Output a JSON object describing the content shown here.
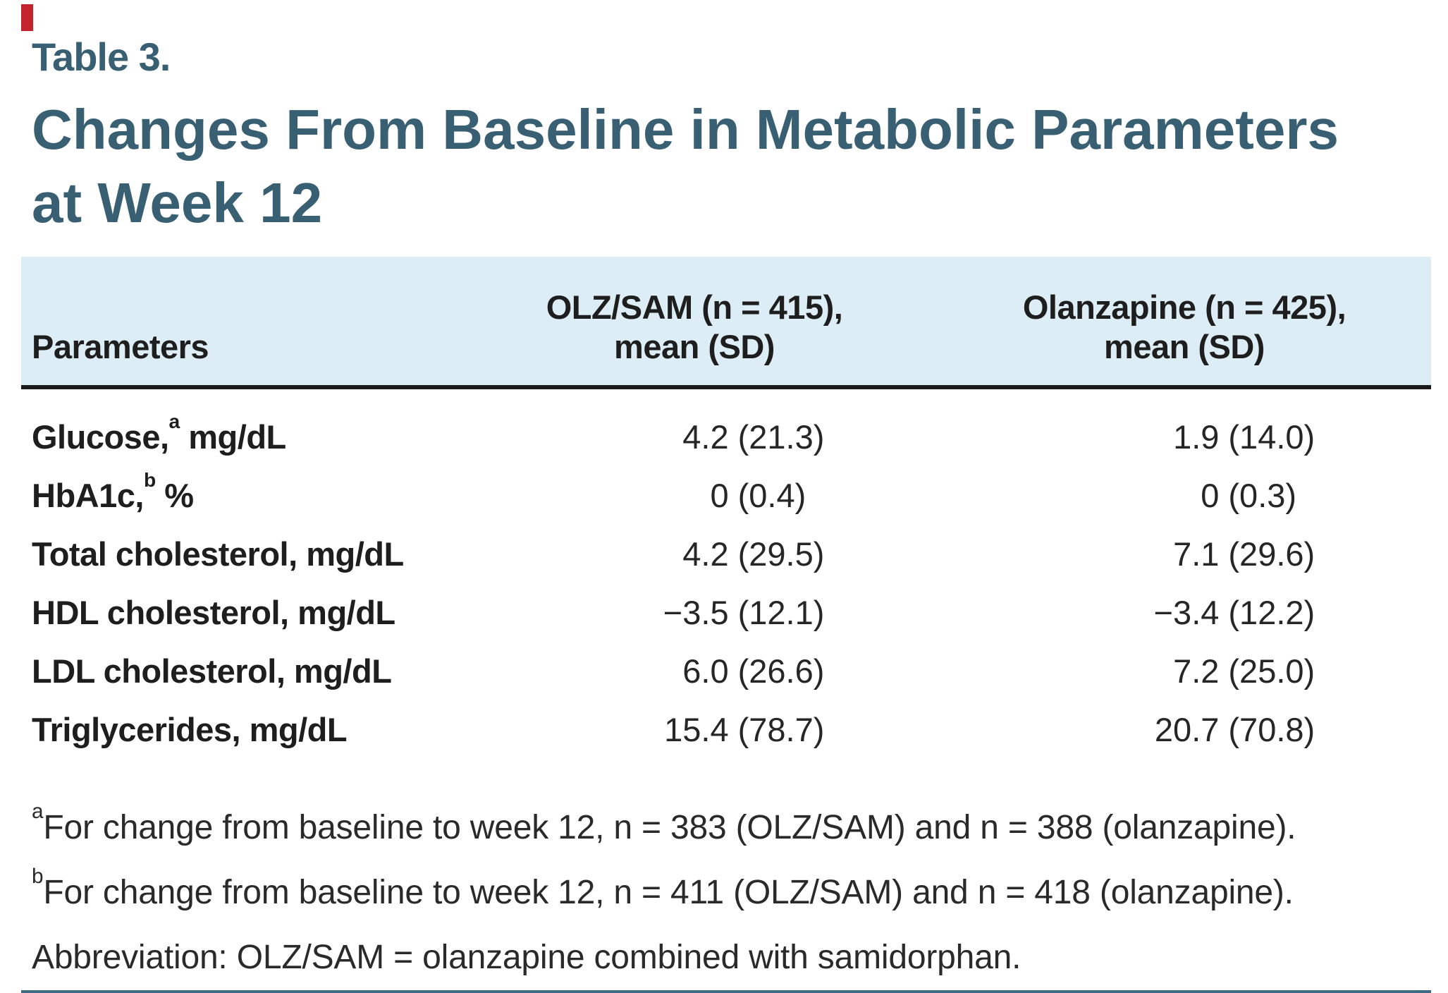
{
  "colors": {
    "title_text": "#395f73",
    "header_background": "#ddedf6",
    "header_underline": "#1a1a1a",
    "bottom_rule": "#3e6c83",
    "body_text": "#1e1e1e",
    "red_mark": "#c4232e"
  },
  "kicker": "Table 3.",
  "title": {
    "lines": [
      "Changes From Baseline in Metabolic Parameters",
      "at Week 12"
    ]
  },
  "table": {
    "columns": {
      "param": "Parameters",
      "col1": "OLZ/SAM (n = 415),\nmean (SD)",
      "col2": "Olanzapine (n = 425),\nmean (SD)"
    },
    "rows": [
      {
        "pre": "Glucose,",
        "sup": "a",
        "post": " mg/dL",
        "c1_mean": "4.2",
        "c1_sd": "(21.3)",
        "c2_mean": "1.9",
        "c2_sd": "(14.0)"
      },
      {
        "pre": "HbA1c,",
        "sup": "b",
        "post": " %",
        "c1_mean": "0",
        "c1_sd": "(0.4)",
        "c2_mean": "0",
        "c2_sd": "(0.3)"
      },
      {
        "pre": "Total cholesterol, mg/dL",
        "sup": "",
        "post": "",
        "c1_mean": "4.2",
        "c1_sd": "(29.5)",
        "c2_mean": "7.1",
        "c2_sd": "(29.6)"
      },
      {
        "pre": "HDL cholesterol, mg/dL",
        "sup": "",
        "post": "",
        "c1_mean": "−3.5",
        "c1_sd": "(12.1)",
        "c2_mean": "−3.4",
        "c2_sd": "(12.2)"
      },
      {
        "pre": "LDL cholesterol, mg/dL",
        "sup": "",
        "post": "",
        "c1_mean": "6.0",
        "c1_sd": "(26.6)",
        "c2_mean": "7.2",
        "c2_sd": "(25.0)"
      },
      {
        "pre": "Triglycerides, mg/dL",
        "sup": "",
        "post": "",
        "c1_mean": "15.4",
        "c1_sd": "(78.7)",
        "c2_mean": "20.7",
        "c2_sd": "(70.8)"
      }
    ]
  },
  "footnotes": [
    {
      "sup": "a",
      "text": "For change from baseline to week 12, n = 383 (OLZ/SAM) and n = 388 (olanzapine)."
    },
    {
      "sup": "b",
      "text": "For change from baseline to week 12, n = 411 (OLZ/SAM) and n = 418 (olanzapine)."
    },
    {
      "sup": "",
      "text": "Abbreviation: OLZ/SAM = olanzapine combined with samidorphan."
    }
  ],
  "chart_data": {
    "type": "table",
    "title": "Table 3. Changes From Baseline in Metabolic Parameters at Week 12",
    "columns": [
      "Parameters",
      "OLZ/SAM (n = 415), mean (SD)",
      "Olanzapine (n = 425), mean (SD)"
    ],
    "rows": [
      [
        "Glucose, mg/dL",
        "4.2 (21.3)",
        "1.9 (14.0)"
      ],
      [
        "HbA1c, %",
        "0 (0.4)",
        "0 (0.3)"
      ],
      [
        "Total cholesterol, mg/dL",
        "4.2 (29.5)",
        "7.1 (29.6)"
      ],
      [
        "HDL cholesterol, mg/dL",
        "−3.5 (12.1)",
        "−3.4 (12.2)"
      ],
      [
        "LDL cholesterol, mg/dL",
        "6.0 (26.6)",
        "7.2 (25.0)"
      ],
      [
        "Triglycerides, mg/dL",
        "15.4 (78.7)",
        "20.7 (70.8)"
      ]
    ]
  }
}
